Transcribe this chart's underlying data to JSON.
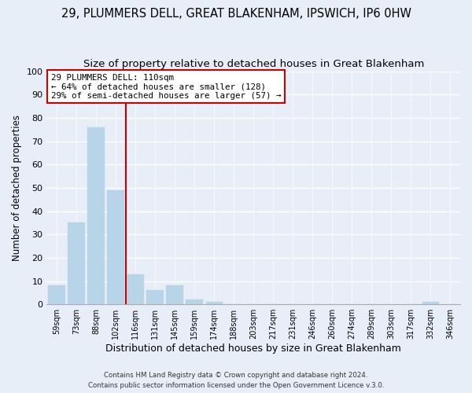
{
  "title1": "29, PLUMMERS DELL, GREAT BLAKENHAM, IPSWICH, IP6 0HW",
  "title2": "Size of property relative to detached houses in Great Blakenham",
  "xlabel": "Distribution of detached houses by size in Great Blakenham",
  "ylabel": "Number of detached properties",
  "footer1": "Contains HM Land Registry data © Crown copyright and database right 2024.",
  "footer2": "Contains public sector information licensed under the Open Government Licence v.3.0.",
  "bar_labels": [
    "59sqm",
    "73sqm",
    "88sqm",
    "102sqm",
    "116sqm",
    "131sqm",
    "145sqm",
    "159sqm",
    "174sqm",
    "188sqm",
    "203sqm",
    "217sqm",
    "231sqm",
    "246sqm",
    "260sqm",
    "274sqm",
    "289sqm",
    "303sqm",
    "317sqm",
    "332sqm",
    "346sqm"
  ],
  "bar_values": [
    8,
    35,
    76,
    49,
    13,
    6,
    8,
    2,
    1,
    0,
    0,
    0,
    0,
    0,
    0,
    0,
    0,
    0,
    0,
    1,
    0
  ],
  "bar_color": "#b8d4e8",
  "bar_edge_color": "#b8d4e8",
  "vline_x": 3.5,
  "vline_color": "#cc0000",
  "annotation_line1": "29 PLUMMERS DELL: 110sqm",
  "annotation_line2": "← 64% of detached houses are smaller (128)",
  "annotation_line3": "29% of semi-detached houses are larger (57) →",
  "annotation_box_color": "#ffffff",
  "annotation_box_edge": "#cc0000",
  "ylim": [
    0,
    100
  ],
  "background_color": "#e8eef8",
  "plot_bg_color": "#e8eef8",
  "grid_color": "#ffffff",
  "title1_fontsize": 10.5,
  "title2_fontsize": 9.5,
  "tick_fontsize": 7,
  "ytick_values": [
    0,
    10,
    20,
    30,
    40,
    50,
    60,
    70,
    80,
    90,
    100
  ]
}
